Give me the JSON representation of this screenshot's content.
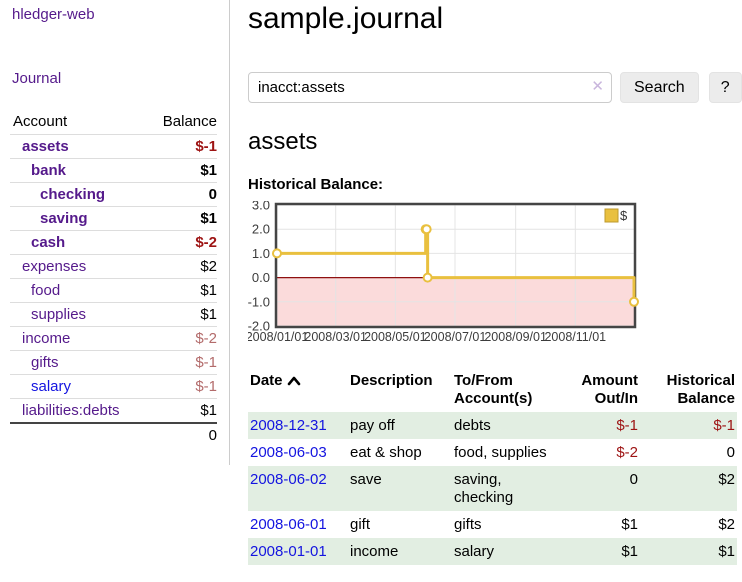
{
  "colors": {
    "purple": "#551a8b",
    "blue": "#1414e0",
    "neg_strong": "#9d1313",
    "neg_muted": "#b36b6b",
    "row_green": "#e2eee2",
    "clear_x": "#c9b6dd",
    "gold": "#e9c03f",
    "pink": "#fbdbdb",
    "zero_line": "#8f1010",
    "chart_border": "#454545",
    "grid": "#e4e4e4",
    "axis_text": "#3c3c3c"
  },
  "sidebar": {
    "brand": "hledger-web",
    "journal_link": "Journal",
    "accounts": {
      "header_account": "Account",
      "header_balance": "Balance",
      "rows": [
        {
          "name": "assets",
          "level": 1,
          "bold": true,
          "link": "purple",
          "balance": "$-1",
          "balance_style": "neg-strong"
        },
        {
          "name": "bank",
          "level": 2,
          "bold": true,
          "link": "purple",
          "balance": "$1",
          "balance_style": "normal"
        },
        {
          "name": "checking",
          "level": 3,
          "bold": true,
          "link": "purple",
          "balance": "0",
          "balance_style": "normal"
        },
        {
          "name": "saving",
          "level": 3,
          "bold": true,
          "link": "purple",
          "balance": "$1",
          "balance_style": "normal"
        },
        {
          "name": "cash",
          "level": 2,
          "bold": true,
          "link": "purple",
          "balance": "$-2",
          "balance_style": "neg-strong"
        },
        {
          "name": "expenses",
          "level": 1,
          "bold": false,
          "link": "purple",
          "balance": "$2",
          "balance_style": "normal"
        },
        {
          "name": "food",
          "level": 2,
          "bold": false,
          "link": "purple",
          "balance": "$1",
          "balance_style": "normal"
        },
        {
          "name": "supplies",
          "level": 2,
          "bold": false,
          "link": "purple",
          "balance": "$1",
          "balance_style": "normal"
        },
        {
          "name": "income",
          "level": 1,
          "bold": false,
          "link": "purple",
          "balance": "$-2",
          "balance_style": "neg-muted"
        },
        {
          "name": "gifts",
          "level": 2,
          "bold": false,
          "link": "purple",
          "balance": "$-1",
          "balance_style": "neg-muted"
        },
        {
          "name": "salary",
          "level": 2,
          "bold": false,
          "link": "blue",
          "balance": "$-1",
          "balance_style": "neg-muted"
        },
        {
          "name": "liabilities:debts",
          "level": 1,
          "bold": false,
          "link": "purple",
          "balance": "$1",
          "balance_style": "normal"
        }
      ],
      "total": "0"
    }
  },
  "header": {
    "title": "sample.journal"
  },
  "search": {
    "value": "inacct:assets",
    "clear_label": "✕",
    "button_label": "Search",
    "help_label": "?"
  },
  "register": {
    "account_title": "assets",
    "chart_label": "Historical Balance:"
  },
  "chart_data": {
    "type": "line",
    "title": "Historical Balance:",
    "step": true,
    "series": [
      {
        "name": "$",
        "color": "#e9c03f",
        "points": [
          [
            "2008-01-01",
            1
          ],
          [
            "2008-06-01",
            2
          ],
          [
            "2008-06-02",
            2
          ],
          [
            "2008-06-03",
            0
          ],
          [
            "2008-12-31",
            -1
          ]
        ]
      }
    ],
    "xlim": [
      "2008-01-01",
      "2008-12-31"
    ],
    "ylim": [
      -2,
      3
    ],
    "yticks": [
      {
        "v": 3,
        "label": "3.0"
      },
      {
        "v": 2,
        "label": "2.0"
      },
      {
        "v": 1,
        "label": "1.0"
      },
      {
        "v": 0,
        "label": "0.0"
      },
      {
        "v": -1,
        "label": "-1.0"
      },
      {
        "v": -2,
        "label": "-2.0"
      }
    ],
    "xticks": [
      {
        "d": "2008-01-01",
        "label": "2008/01/01"
      },
      {
        "d": "2008-03-01",
        "label": "2008/03/01"
      },
      {
        "d": "2008-05-01",
        "label": "2008/05/01"
      },
      {
        "d": "2008-07-01",
        "label": "2008/07/01"
      },
      {
        "d": "2008-09-01",
        "label": "2008/09/01"
      },
      {
        "d": "2008-11-01",
        "label": "2008/11/01"
      }
    ],
    "grid": true,
    "legend_position": "top-right",
    "negative_region": true
  },
  "register_table": {
    "headers": {
      "date": "Date",
      "description": "Description",
      "accounts": "To/From Account(s)",
      "amount": "Amount Out/In",
      "balance": "Historical Balance"
    },
    "rows": [
      {
        "date": "2008-12-31",
        "description": "pay off",
        "accounts": "debts",
        "amount": "$-1",
        "amount_neg": true,
        "balance": "$-1",
        "balance_neg": true
      },
      {
        "date": "2008-06-03",
        "description": "eat & shop",
        "accounts": "food, supplies",
        "amount": "$-2",
        "amount_neg": true,
        "balance": "0",
        "balance_neg": false
      },
      {
        "date": "2008-06-02",
        "description": "save",
        "accounts": "saving, checking",
        "amount": "0",
        "amount_neg": false,
        "balance": "$2",
        "balance_neg": false
      },
      {
        "date": "2008-06-01",
        "description": "gift",
        "accounts": "gifts",
        "amount": "$1",
        "amount_neg": false,
        "balance": "$2",
        "balance_neg": false
      },
      {
        "date": "2008-01-01",
        "description": "income",
        "accounts": "salary",
        "amount": "$1",
        "amount_neg": false,
        "balance": "$1",
        "balance_neg": false
      }
    ]
  }
}
